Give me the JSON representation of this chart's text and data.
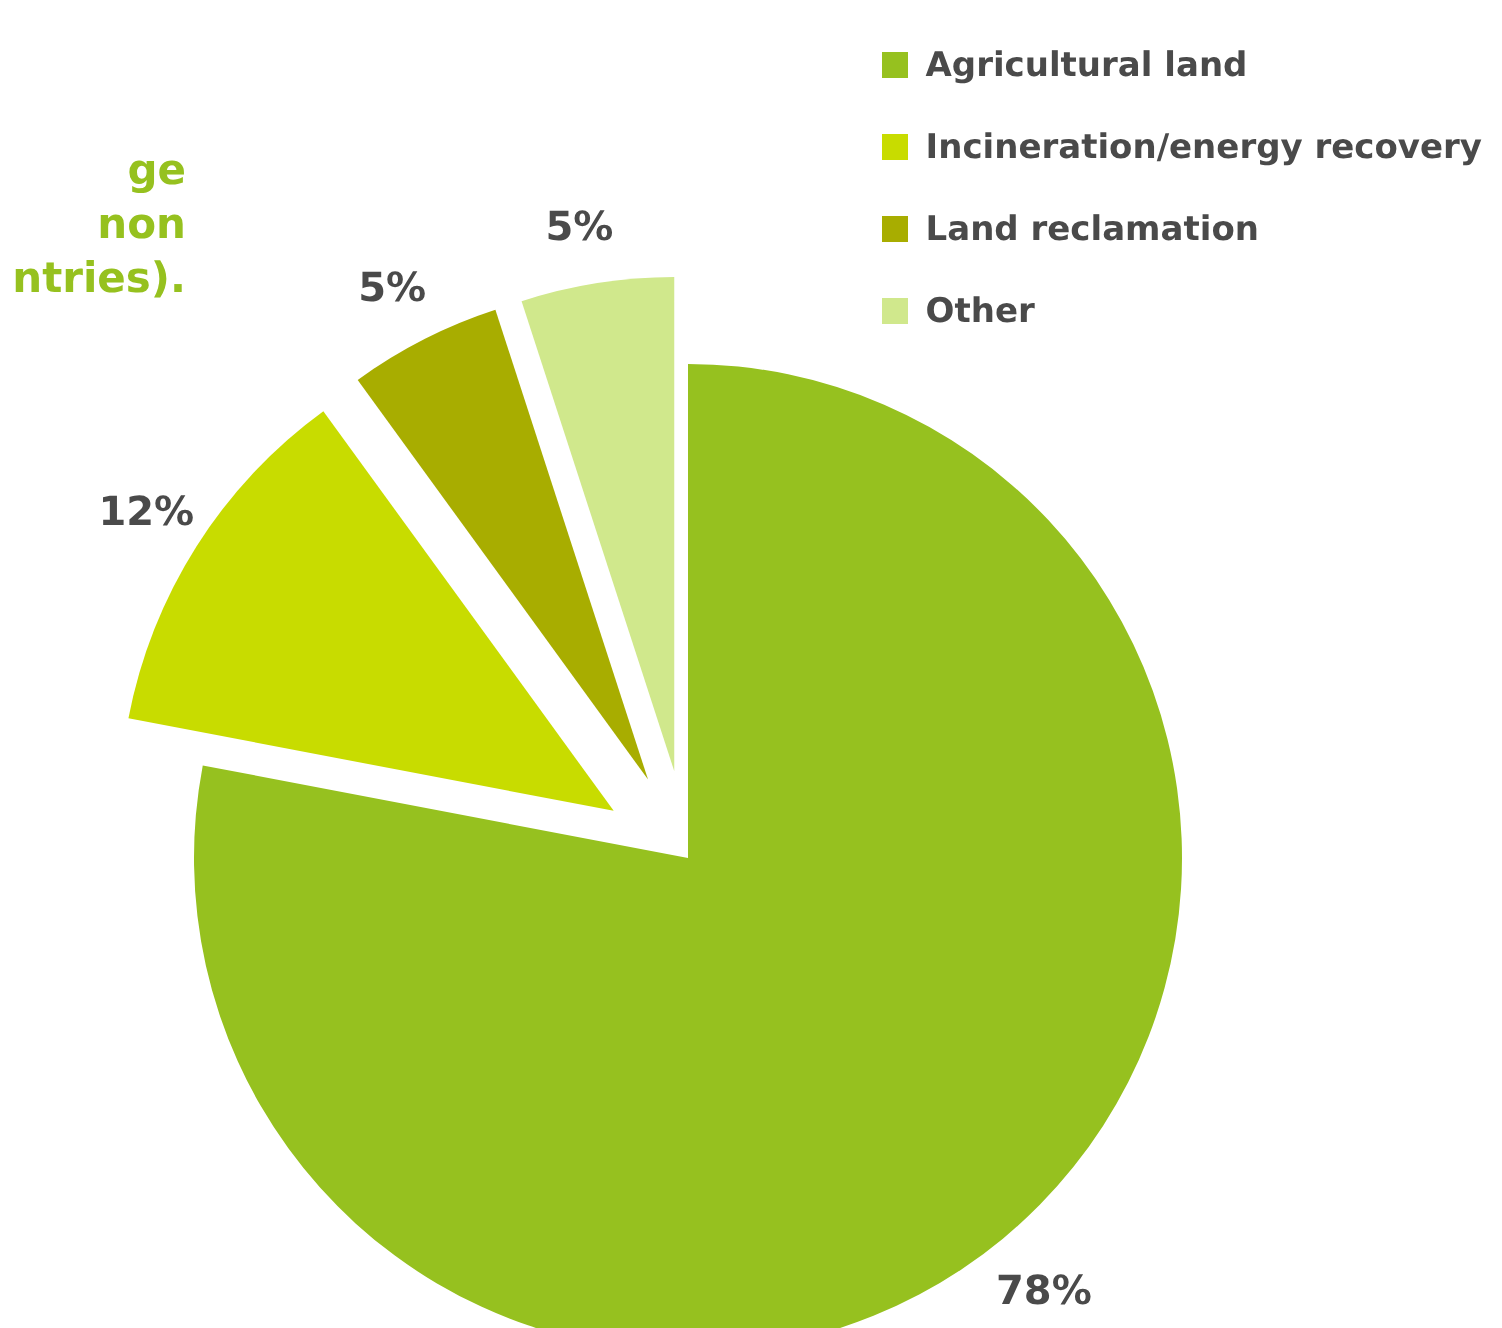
{
  "chart_data": {
    "type": "pie",
    "title": "ge\nnon\nntries).",
    "categories": [
      "Agricultural land",
      "Incineration/energy recovery",
      "Land reclamation",
      "Other"
    ],
    "values": [
      78,
      12,
      5,
      5
    ],
    "colors": [
      "#96c11f",
      "#c8dc00",
      "#a8ad00",
      "#d0e88c"
    ],
    "value_labels": [
      "78%",
      "12%",
      "5%",
      "5%"
    ],
    "legend": "top right"
  }
}
